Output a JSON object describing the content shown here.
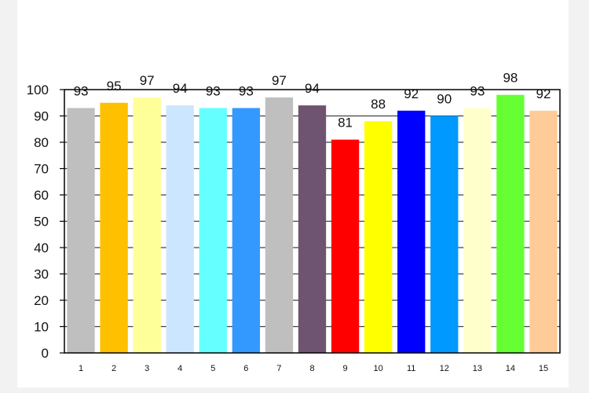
{
  "chart_data": {
    "type": "bar",
    "title": "",
    "xlabel": "",
    "ylabel": "",
    "ylim": [
      0,
      100
    ],
    "yticks": [
      0,
      10,
      20,
      30,
      40,
      50,
      60,
      70,
      80,
      90,
      100
    ],
    "grid": true,
    "legend": "none",
    "categories": [
      "1",
      "2",
      "3",
      "4",
      "5",
      "6",
      "7",
      "8",
      "9",
      "10",
      "11",
      "12",
      "13",
      "14",
      "15"
    ],
    "values": [
      93,
      95,
      97,
      94,
      93,
      93,
      97,
      94,
      81,
      88,
      92,
      90,
      93,
      98,
      92
    ],
    "colors": [
      "#bfbfbf",
      "#ffc000",
      "#ffff99",
      "#cce6ff",
      "#66ffff",
      "#3399ff",
      "#bfbfbf",
      "#6e5470",
      "#ff0000",
      "#ffff00",
      "#0000ff",
      "#0099ff",
      "#ffffcc",
      "#66ff33",
      "#ffcc99"
    ]
  }
}
